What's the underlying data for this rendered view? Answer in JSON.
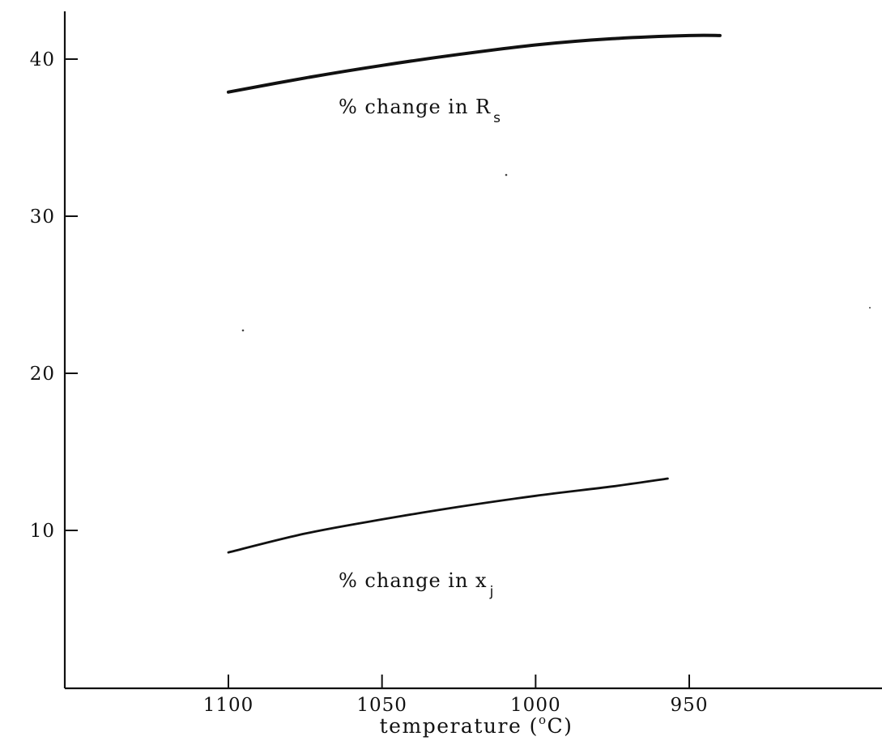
{
  "chart_data": {
    "type": "line",
    "title": "",
    "xlabel": "temperature (°C)",
    "xlabel_parts": {
      "text": "temperature (",
      "sup": "o",
      "unit": "C)"
    },
    "ylabel": "",
    "x_reversed": true,
    "xlim": [
      1150,
      945
    ],
    "ylim": [
      0,
      43
    ],
    "x_ticks": [
      "1100",
      "1050",
      "1000",
      "950"
    ],
    "y_ticks": [
      "10",
      "20",
      "30",
      "40"
    ],
    "grid": false,
    "series": [
      {
        "name": "% change in R_s",
        "label_main": "% change in R",
        "label_sub": "s",
        "x": [
          1100,
          1075,
          1050,
          1025,
          1000,
          975,
          950,
          940
        ],
        "y": [
          37.9,
          38.8,
          39.6,
          40.3,
          40.9,
          41.3,
          41.5,
          41.5
        ]
      },
      {
        "name": "% change in x_j",
        "label_main": "% change in x",
        "label_sub": "j",
        "x": [
          1100,
          1075,
          1050,
          1025,
          1000,
          975,
          957
        ],
        "y": [
          8.6,
          9.8,
          10.7,
          11.5,
          12.2,
          12.8,
          13.3
        ]
      }
    ]
  }
}
